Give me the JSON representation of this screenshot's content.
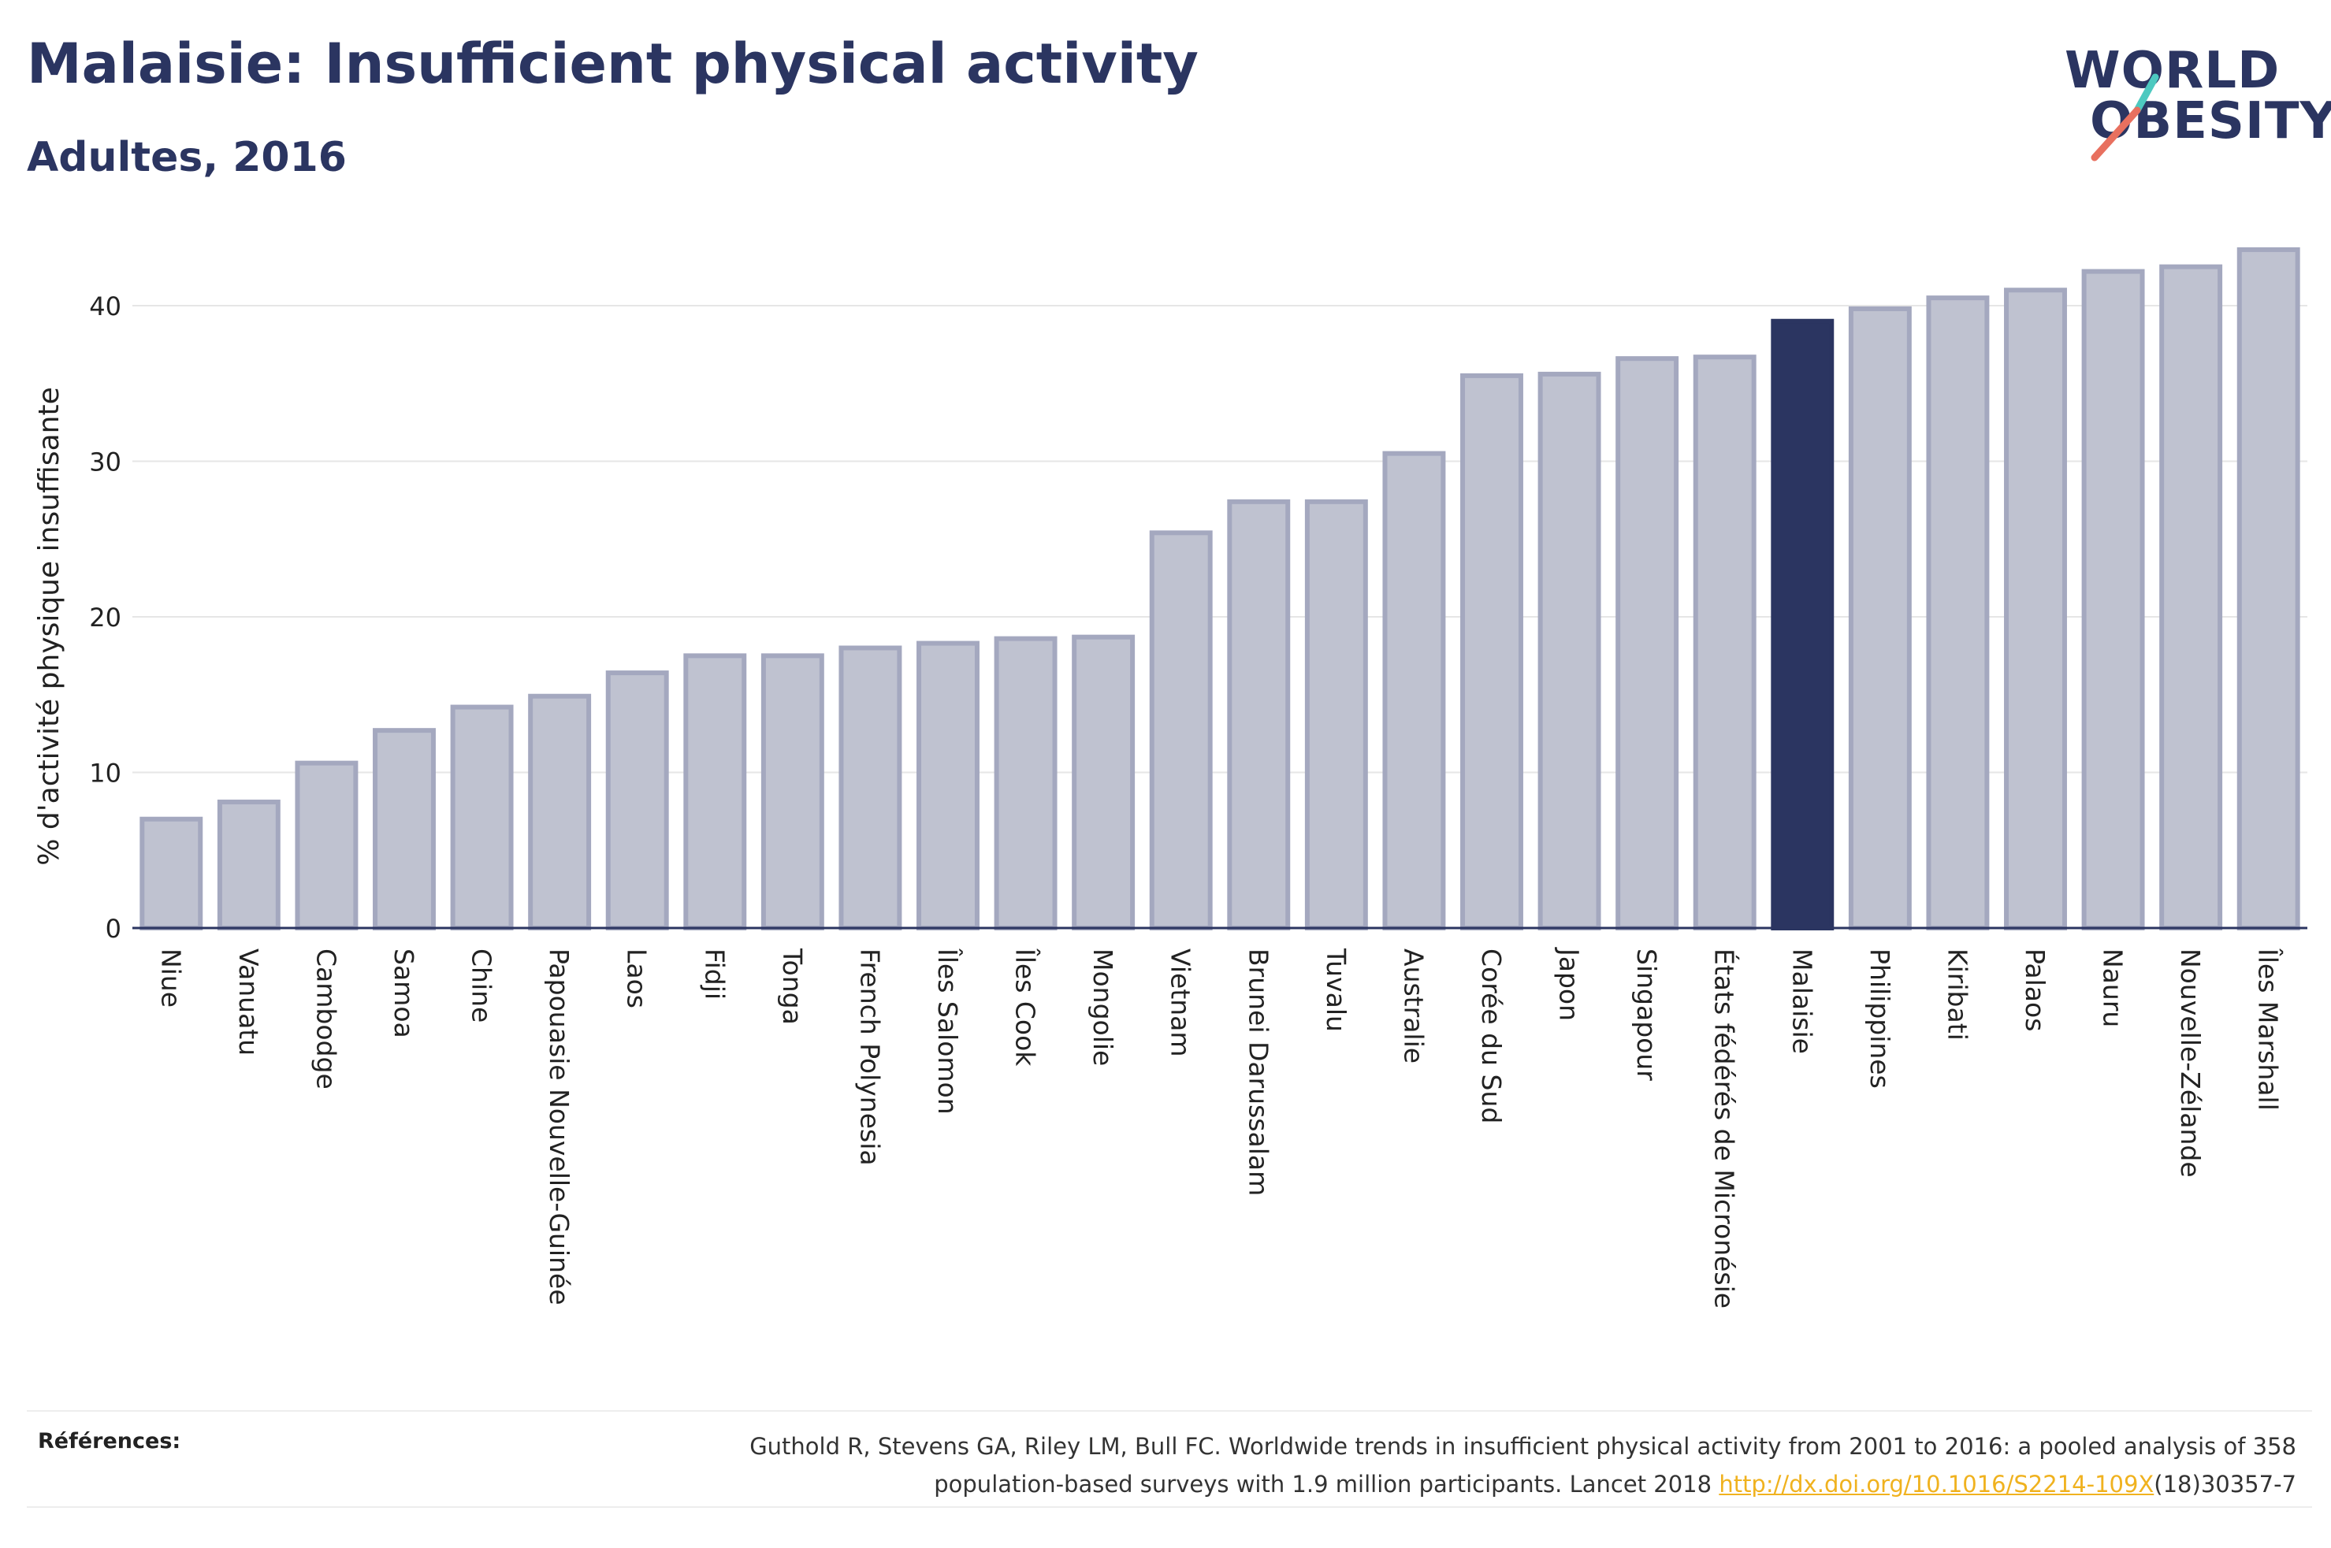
{
  "header": {
    "title": "Malaisie: Insufficient physical activity",
    "subtitle": "Adultes, 2016"
  },
  "logo": {
    "line1": "WORLD",
    "line2": "OBESITY",
    "slash_colors": [
      "#4dc9c0",
      "#e8705f"
    ]
  },
  "colors": {
    "bar": "#bfc2d0",
    "bar_border": "#a4a8bf",
    "highlight": "#2b3561",
    "grid": "#e6e6e6",
    "axis": "#2b3561",
    "link": "#f0b21f"
  },
  "chart_data": {
    "type": "bar",
    "title": "",
    "xlabel": "",
    "ylabel": "% d'activité physique insuffisante",
    "ylim": [
      0,
      45
    ],
    "yticks": [
      0,
      10,
      20,
      30,
      40
    ],
    "grid": true,
    "highlight": "Malaisie",
    "categories": [
      "Niue",
      "Vanuatu",
      "Cambodge",
      "Samoa",
      "Chine",
      "Papouasie Nouvelle-Guinée",
      "Laos",
      "Fidji",
      "Tonga",
      "French Polynesia",
      "Îles Salomon",
      "Îles Cook",
      "Mongolie",
      "Vietnam",
      "Brunei Darussalam",
      "Tuvalu",
      "Australie",
      "Corée du Sud",
      "Japon",
      "Singapour",
      "États fédérés de Micronésie",
      "Malaisie",
      "Philippines",
      "Kiribati",
      "Palaos",
      "Nauru",
      "Nouvelle-Zélande",
      "Îles Marshall"
    ],
    "values": [
      7.0,
      8.1,
      10.6,
      12.7,
      14.2,
      14.9,
      16.4,
      17.5,
      17.5,
      18.0,
      18.3,
      18.6,
      18.7,
      25.4,
      27.4,
      27.4,
      30.5,
      35.5,
      35.6,
      36.6,
      36.7,
      39.0,
      39.8,
      40.5,
      41.0,
      42.2,
      42.5,
      43.6
    ]
  },
  "references": {
    "label": "Références:",
    "text_line1": "Guthold R, Stevens GA, Riley LM, Bull FC. Worldwide trends in insufficient physical activity from 2001 to 2016: a pooled analysis of 358",
    "text_line2_before": "population-based surveys with 1.9 million participants. Lancet 2018 ",
    "link": "http://dx.doi.org/10.1016/S2214-109X",
    "text_line2_after": "(18)30357-7"
  }
}
